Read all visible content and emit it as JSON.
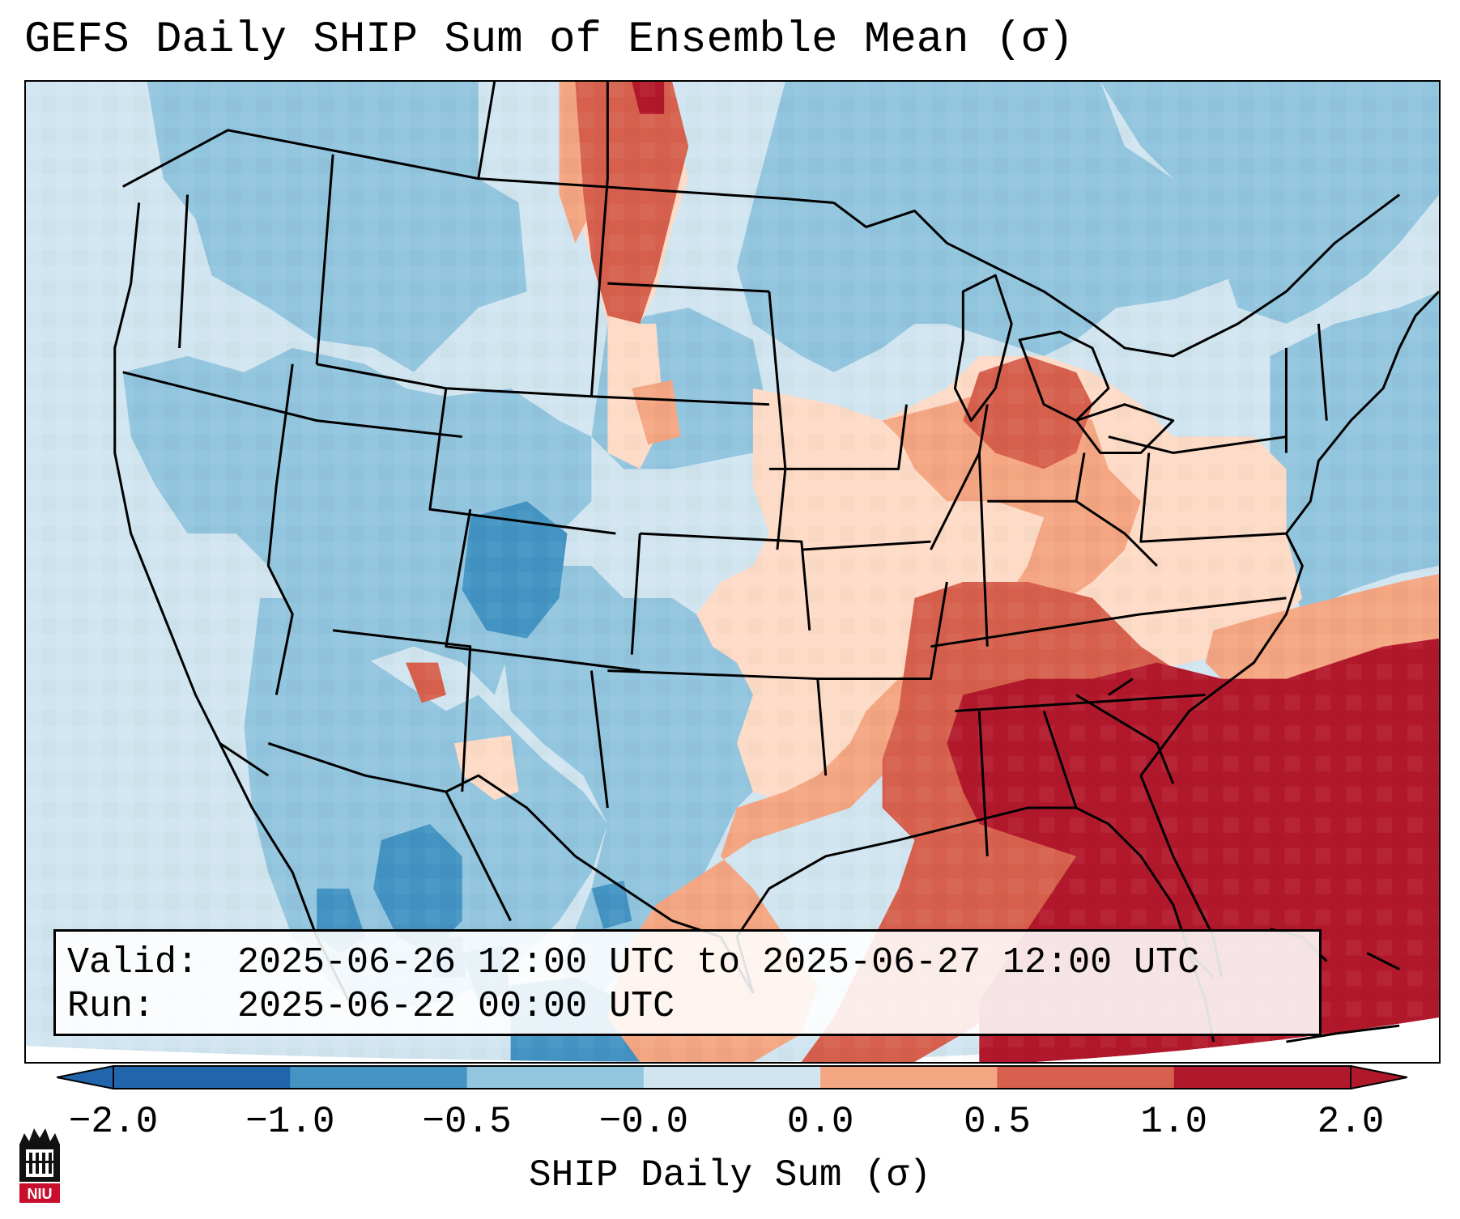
{
  "title": "GEFS Daily SHIP Sum of Ensemble Mean (σ)",
  "info": {
    "valid_label": "Valid:",
    "valid_value": "2025-06-26 12:00 UTC to 2025-06-27 12:00 UTC",
    "run_label": "Run:",
    "run_value": "2025-06-22 00:00 UTC"
  },
  "colorbar": {
    "label": "SHIP Daily Sum (σ)",
    "tick_labels": [
      "−2.0",
      "−1.0",
      "−0.5",
      "−0.0",
      "0.0",
      "0.5",
      "1.0",
      "2.0"
    ],
    "colors": [
      "#2166ac",
      "#4393c3",
      "#92c5de",
      "#d1e5f0",
      "#fddbc7",
      "#f4a582",
      "#d6604d",
      "#b2182b"
    ],
    "extend": "both"
  },
  "logo": {
    "text": "NIU",
    "icon": "niu-castle-logo-icon"
  },
  "map": {
    "region": "Contiguous United States, southern Canada and northern Mexico",
    "field": "SHIP daily sum anomaly",
    "overlay_lines": [
      "coastlines",
      "country borders",
      "state and province borders"
    ]
  }
}
